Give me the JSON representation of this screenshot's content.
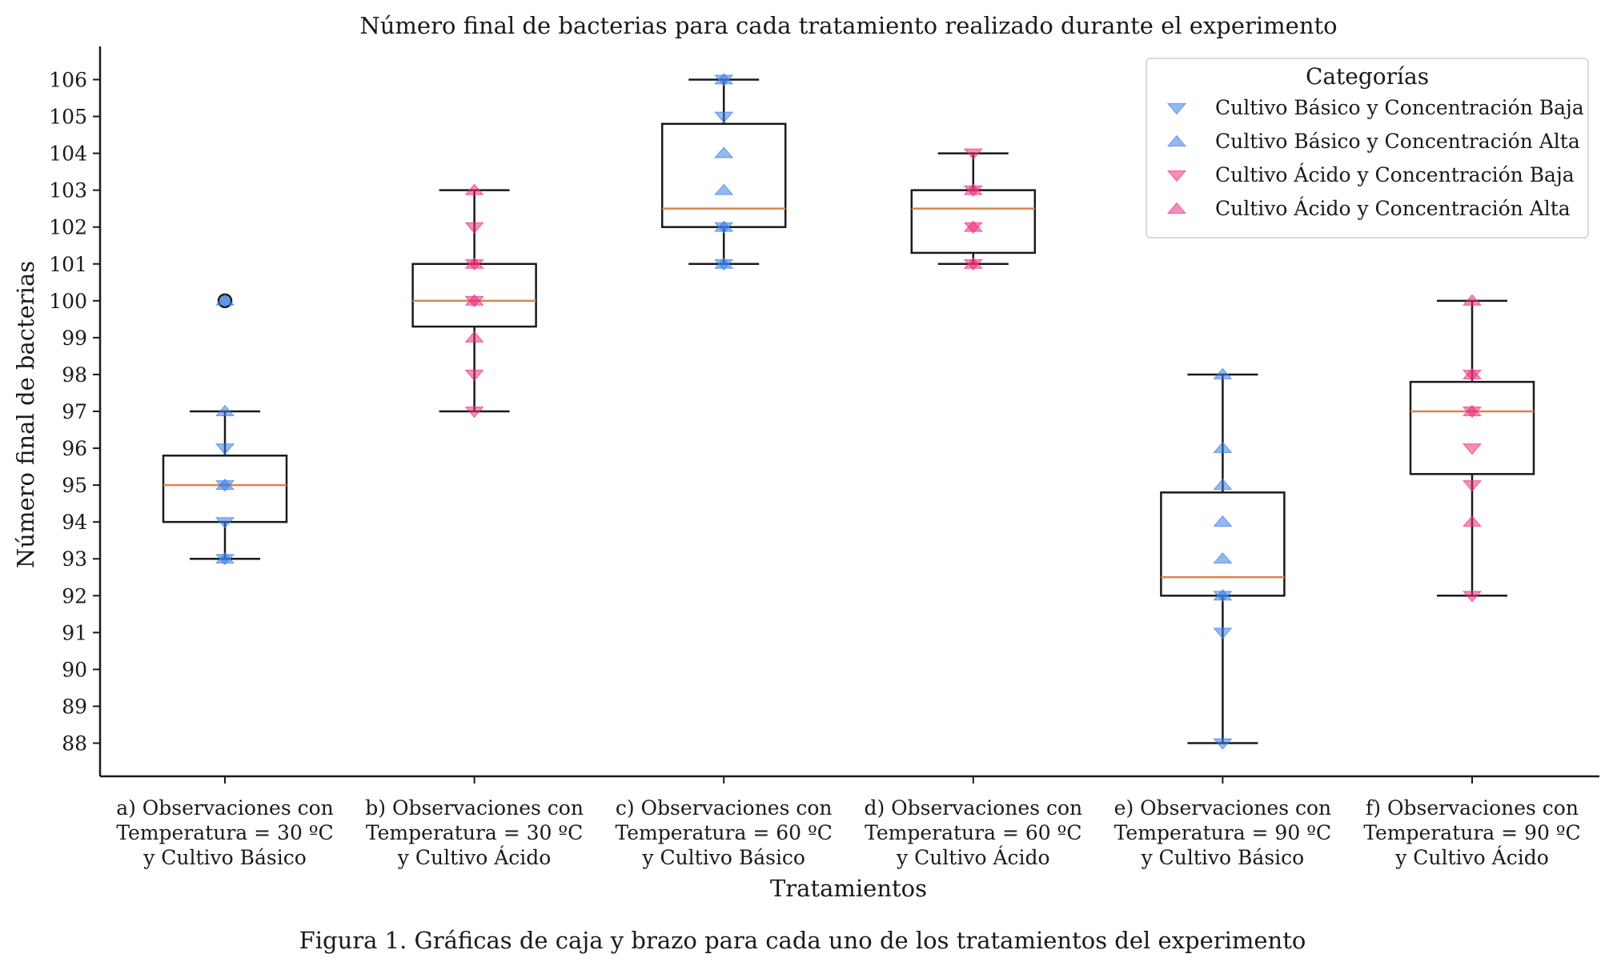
{
  "caption": "Figura 1. Gráficas de caja y brazo para cada uno de los tratamientos del experimento",
  "colors": {
    "blue": "#3d7de6",
    "pink": "#ec2f7b",
    "median": "#d98552",
    "axis": "#1a1a1a"
  },
  "chart_data": {
    "type": "box",
    "title": "Número final de bacterias para cada tratamiento realizado durante el experimento",
    "xlabel": "Tratamientos",
    "ylabel": "Número final de bacterias",
    "ylim": [
      87.1,
      106.9
    ],
    "yticks": [
      88,
      89,
      90,
      91,
      92,
      93,
      94,
      95,
      96,
      97,
      98,
      99,
      100,
      101,
      102,
      103,
      104,
      105,
      106
    ],
    "legend": {
      "title": "Categorías",
      "position": "top-right",
      "entries": [
        {
          "label": "Cultivo Básico y Concentración Baja",
          "color": "blue",
          "marker": "triangle-down"
        },
        {
          "label": "Cultivo Básico y Concentración Alta",
          "color": "blue",
          "marker": "triangle-up"
        },
        {
          "label": "Cultivo Ácido y Concentración Baja",
          "color": "pink",
          "marker": "triangle-down"
        },
        {
          "label": "Cultivo Ácido y Concentración Alta",
          "color": "pink",
          "marker": "triangle-up"
        }
      ]
    },
    "groups": [
      {
        "label": [
          "a) Observaciones con",
          "Temperatura = 30 ºC",
          "y Cultivo Básico"
        ],
        "whisker_low": 93,
        "q1": 94,
        "median": 95,
        "q3": 95.8,
        "whisker_high": 97,
        "outliers": [
          100
        ],
        "points": [
          {
            "category": 0,
            "values": [
              93,
              94,
              95,
              96
            ]
          },
          {
            "category": 1,
            "values": [
              93,
              95,
              97,
              100
            ]
          }
        ]
      },
      {
        "label": [
          "b) Observaciones con",
          "Temperatura = 30 ºC",
          "y Cultivo Ácido"
        ],
        "whisker_low": 97,
        "q1": 99.3,
        "median": 100,
        "q3": 101,
        "whisker_high": 103,
        "outliers": [],
        "points": [
          {
            "category": 2,
            "values": [
              97,
              98,
              100,
              101,
              102
            ]
          },
          {
            "category": 3,
            "values": [
              99,
              100,
              101,
              103
            ]
          }
        ]
      },
      {
        "label": [
          "c) Observaciones con",
          "Temperatura = 60 ºC",
          "y Cultivo Básico"
        ],
        "whisker_low": 101,
        "q1": 102,
        "median": 102.5,
        "q3": 104.8,
        "whisker_high": 106,
        "outliers": [],
        "points": [
          {
            "category": 0,
            "values": [
              101,
              102,
              105,
              106
            ]
          },
          {
            "category": 1,
            "values": [
              101,
              102,
              103,
              104,
              106
            ]
          }
        ]
      },
      {
        "label": [
          "d) Observaciones con",
          "Temperatura = 60 ºC",
          "y Cultivo Ácido"
        ],
        "whisker_low": 101,
        "q1": 101.3,
        "median": 102.5,
        "q3": 103,
        "whisker_high": 104,
        "outliers": [],
        "points": [
          {
            "category": 2,
            "values": [
              101,
              102,
              103,
              104
            ]
          },
          {
            "category": 3,
            "values": [
              101,
              102,
              103
            ]
          }
        ]
      },
      {
        "label": [
          "e) Observaciones con",
          "Temperatura = 90 ºC",
          "y Cultivo Básico"
        ],
        "whisker_low": 88,
        "q1": 92,
        "median": 92.5,
        "q3": 94.8,
        "whisker_high": 98,
        "outliers": [],
        "points": [
          {
            "category": 0,
            "values": [
              88,
              91,
              92
            ]
          },
          {
            "category": 1,
            "values": [
              92,
              93,
              94,
              95,
              96,
              98
            ]
          }
        ]
      },
      {
        "label": [
          "f) Observaciones con",
          "Temperatura = 90 ºC",
          "y Cultivo Ácido"
        ],
        "whisker_low": 92,
        "q1": 95.3,
        "median": 97,
        "q3": 97.8,
        "whisker_high": 100,
        "outliers": [],
        "points": [
          {
            "category": 2,
            "values": [
              92,
              95,
              96,
              97,
              98
            ]
          },
          {
            "category": 3,
            "values": [
              94,
              97,
              98,
              100
            ]
          }
        ]
      }
    ]
  }
}
